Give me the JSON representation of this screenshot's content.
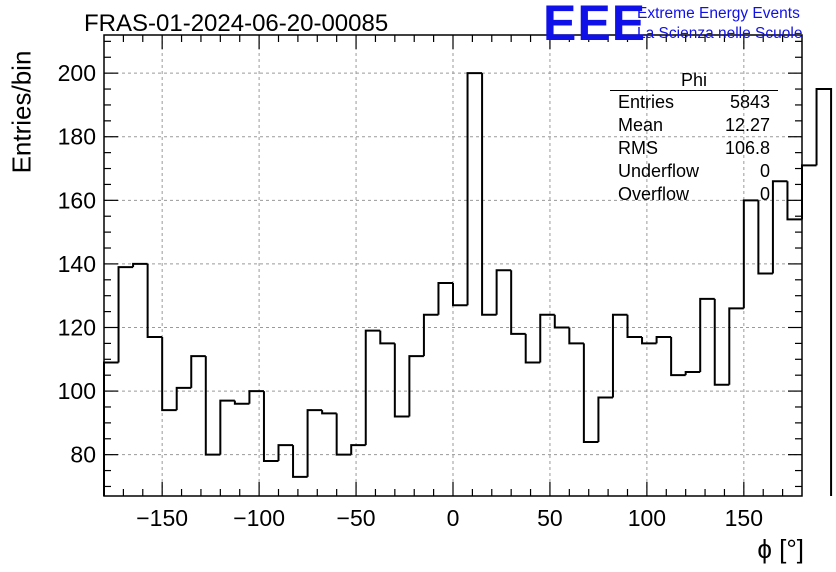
{
  "title": "FRAS-01-2024-06-20-00085",
  "logo": {
    "mark": "EEE",
    "line1": "Extreme Energy Events",
    "line2": "La Scienza nelle Scuole"
  },
  "stats_box": {
    "title": "Phi",
    "rows": [
      {
        "label": "Entries",
        "value": "5843"
      },
      {
        "label": "Mean",
        "value": "12.27"
      },
      {
        "label": "RMS",
        "value": "106.8"
      },
      {
        "label": "Underflow",
        "value": "0"
      },
      {
        "label": "Overflow",
        "value": "0"
      }
    ]
  },
  "chart_data": {
    "type": "bar",
    "style": "step-histogram",
    "xlabel": "ϕ [°]",
    "ylabel": "Entries/bin",
    "xlim": [
      -180,
      180
    ],
    "ylim": [
      67,
      212
    ],
    "grid": true,
    "bin_width": 7.5,
    "x_ticks": [
      -150,
      -100,
      -50,
      0,
      50,
      100,
      150
    ],
    "x_tick_labels": [
      "−150",
      "−100",
      "−50",
      "0",
      "50",
      "100",
      "150"
    ],
    "y_ticks": [
      80,
      100,
      120,
      140,
      160,
      180,
      200
    ],
    "y_tick_labels": [
      "80",
      "100",
      "120",
      "140",
      "160",
      "180",
      "200"
    ],
    "values": [
      109,
      139,
      140,
      117,
      94,
      101,
      111,
      80,
      97,
      96,
      100,
      78,
      83,
      73,
      94,
      93,
      80,
      83,
      119,
      115,
      92,
      111,
      124,
      134,
      127,
      200,
      124,
      138,
      118,
      109,
      124,
      120,
      115,
      84,
      98,
      124,
      117,
      115,
      117,
      105,
      106,
      129,
      102,
      126,
      160,
      137,
      166,
      154,
      171,
      195
    ]
  }
}
